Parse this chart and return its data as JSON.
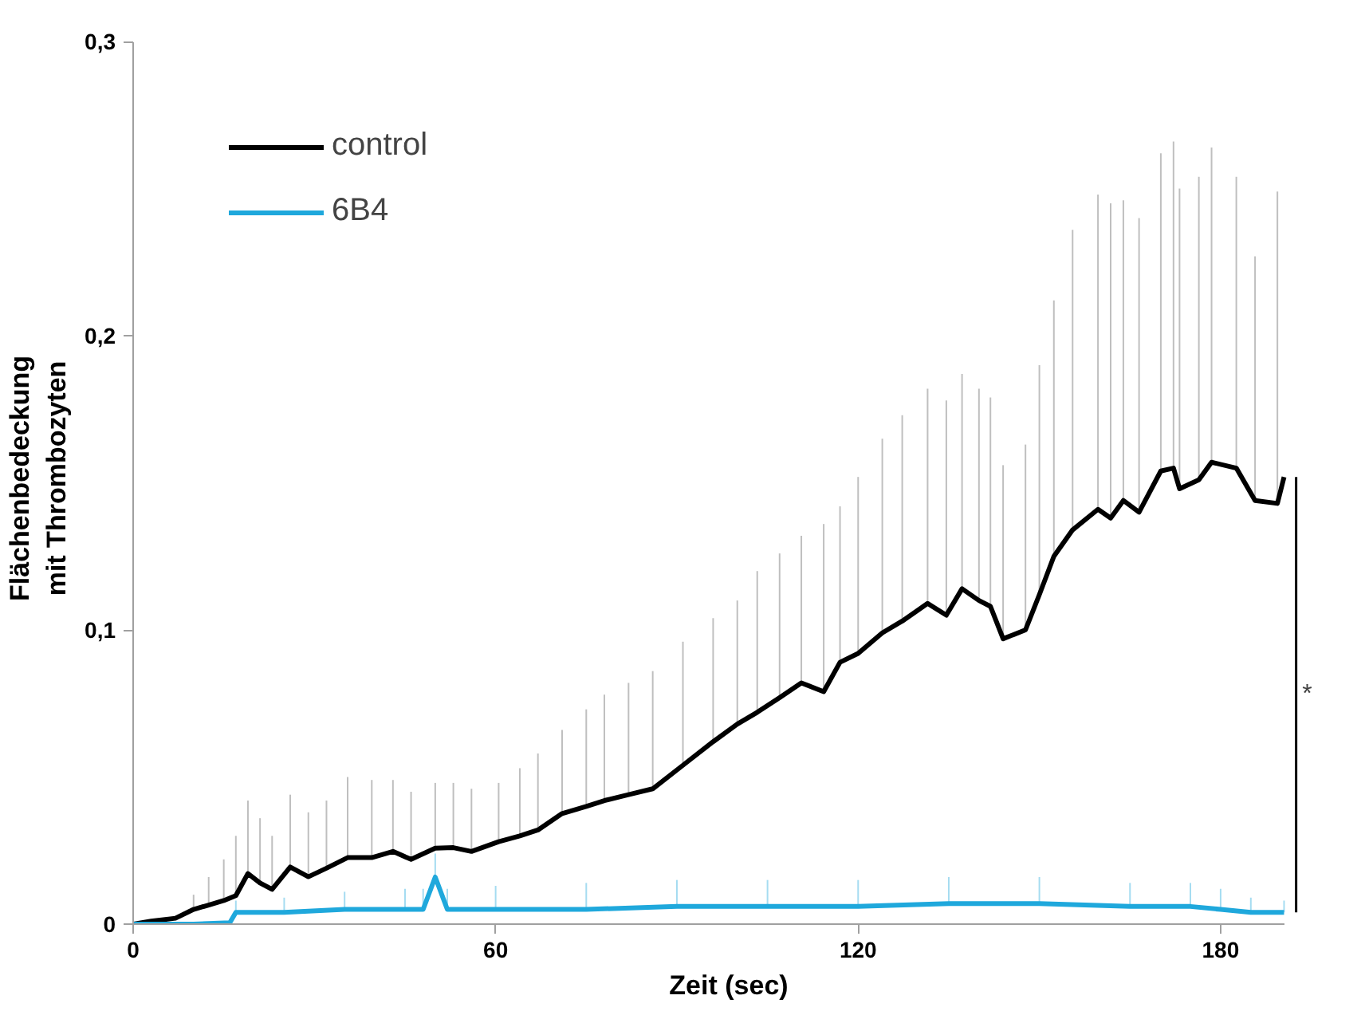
{
  "chart_data": {
    "type": "line",
    "xlabel": "Zeit (sec)",
    "ylabel": "Flächenbedeckung\nmit Thrombozyten",
    "xlim": [
      0,
      190.5
    ],
    "ylim": [
      0,
      0.3
    ],
    "xticks": [
      0,
      60,
      120,
      180
    ],
    "yticks": [
      0,
      {
        "value": 0.1,
        "label": "0,1"
      },
      {
        "value": 0.2,
        "label": "0,2"
      },
      {
        "value": 0.3,
        "label": "0,3"
      }
    ],
    "grid": false,
    "legend": "top left",
    "marker": "none",
    "line_style": "solid",
    "annotations": [
      "*"
    ],
    "series": [
      {
        "name": "control",
        "color": "#000000",
        "x": [
          0,
          3,
          7,
          10,
          12.5,
          15,
          17,
          19,
          21,
          23,
          26,
          29,
          32,
          35.5,
          39.5,
          43,
          46,
          50,
          53,
          56,
          60.5,
          64,
          67,
          71,
          75,
          78,
          82,
          86,
          91,
          96,
          100,
          103.3,
          107,
          110.6,
          114.3,
          117,
          120,
          124,
          127.3,
          131.5,
          134.6,
          137.2,
          140,
          141.9,
          144,
          147.7,
          150,
          152.4,
          155.5,
          159.7,
          161.8,
          163.9,
          166.5,
          170.1,
          172.2,
          173.2,
          176.4,
          178.5,
          182.6,
          185.7,
          189.4,
          190.5
        ],
        "values": [
          0,
          0.001,
          0.002,
          0.005,
          0.0065,
          0.008,
          0.0097,
          0.0172,
          0.014,
          0.0118,
          0.0194,
          0.0161,
          0.019,
          0.0226,
          0.0226,
          0.0247,
          0.022,
          0.0258,
          0.026,
          0.0247,
          0.028,
          0.03,
          0.032,
          0.0376,
          0.04,
          0.042,
          0.044,
          0.046,
          0.054,
          0.062,
          0.068,
          0.072,
          0.077,
          0.082,
          0.079,
          0.089,
          0.092,
          0.099,
          0.103,
          0.109,
          0.105,
          0.114,
          0.11,
          0.108,
          0.097,
          0.1,
          0.112,
          0.125,
          0.134,
          0.141,
          0.138,
          0.144,
          0.14,
          0.154,
          0.155,
          0.148,
          0.151,
          0.157,
          0.155,
          0.144,
          0.143,
          0.152
        ],
        "errors": [
          null,
          null,
          null,
          [
            0.005,
            0.01
          ],
          [
            0.0065,
            0.016
          ],
          [
            0.008,
            0.022
          ],
          [
            0.0097,
            0.03
          ],
          [
            0.0172,
            0.042
          ],
          [
            0.014,
            0.036
          ],
          [
            0.0118,
            0.03
          ],
          [
            0.0194,
            0.044
          ],
          [
            0.0161,
            0.038
          ],
          [
            0.019,
            0.042
          ],
          [
            0.0226,
            0.05
          ],
          [
            0.0226,
            0.049
          ],
          [
            0.0247,
            0.049
          ],
          [
            0.022,
            0.045
          ],
          [
            0.0258,
            0.048
          ],
          [
            0.026,
            0.048
          ],
          [
            0.0247,
            0.046
          ],
          [
            0.028,
            0.048
          ],
          [
            0.03,
            0.053
          ],
          [
            0.032,
            0.058
          ],
          [
            0.0376,
            0.066
          ],
          [
            0.04,
            0.073
          ],
          [
            0.042,
            0.078
          ],
          [
            0.044,
            0.082
          ],
          [
            0.046,
            0.086
          ],
          [
            0.054,
            0.096
          ],
          [
            0.062,
            0.104
          ],
          [
            0.068,
            0.11
          ],
          [
            0.072,
            0.12
          ],
          [
            0.077,
            0.126
          ],
          [
            0.082,
            0.132
          ],
          [
            0.079,
            0.136
          ],
          [
            0.089,
            0.142
          ],
          [
            0.092,
            0.152
          ],
          [
            0.099,
            0.165
          ],
          [
            0.103,
            0.173
          ],
          [
            0.109,
            0.182
          ],
          [
            0.105,
            0.178
          ],
          [
            0.114,
            0.187
          ],
          [
            0.11,
            0.182
          ],
          [
            0.108,
            0.179
          ],
          [
            0.097,
            0.156
          ],
          [
            0.1,
            0.163
          ],
          [
            0.112,
            0.19
          ],
          [
            0.125,
            0.212
          ],
          [
            0.134,
            0.236
          ],
          [
            0.141,
            0.248
          ],
          [
            0.138,
            0.245
          ],
          [
            0.144,
            0.246
          ],
          [
            0.14,
            0.24
          ],
          [
            0.154,
            0.262
          ],
          [
            0.155,
            0.266
          ],
          [
            0.148,
            0.25
          ],
          [
            0.151,
            0.254
          ],
          [
            0.157,
            0.264
          ],
          [
            0.155,
            0.254
          ],
          [
            0.144,
            0.227
          ],
          [
            0.143,
            0.249
          ],
          null
        ]
      },
      {
        "name": "6B4",
        "color": "#1fa8dc",
        "x": [
          0,
          10,
          16,
          17,
          25,
          35,
          45,
          48,
          50,
          52,
          60,
          75,
          90,
          105,
          120,
          135,
          150,
          165,
          175,
          180,
          185,
          190.5
        ],
        "values": [
          0,
          0,
          0.0005,
          0.004,
          0.004,
          0.005,
          0.005,
          0.005,
          0.016,
          0.005,
          0.005,
          0.005,
          0.006,
          0.006,
          0.006,
          0.007,
          0.007,
          0.006,
          0.006,
          0.005,
          0.004,
          0.004
        ],
        "errors": [
          null,
          null,
          null,
          [
            0.004,
            0.008
          ],
          [
            0.004,
            0.009
          ],
          [
            0.005,
            0.011
          ],
          [
            0.005,
            0.012
          ],
          [
            0.005,
            0.012
          ],
          [
            0.016,
            0.024
          ],
          [
            0.005,
            0.012
          ],
          [
            0.005,
            0.013
          ],
          [
            0.005,
            0.014
          ],
          [
            0.006,
            0.015
          ],
          [
            0.006,
            0.015
          ],
          [
            0.006,
            0.015
          ],
          [
            0.007,
            0.016
          ],
          [
            0.007,
            0.016
          ],
          [
            0.006,
            0.014
          ],
          [
            0.006,
            0.014
          ],
          [
            0.005,
            0.012
          ],
          [
            0.004,
            0.009
          ],
          [
            0.004,
            0.008
          ]
        ]
      }
    ]
  }
}
